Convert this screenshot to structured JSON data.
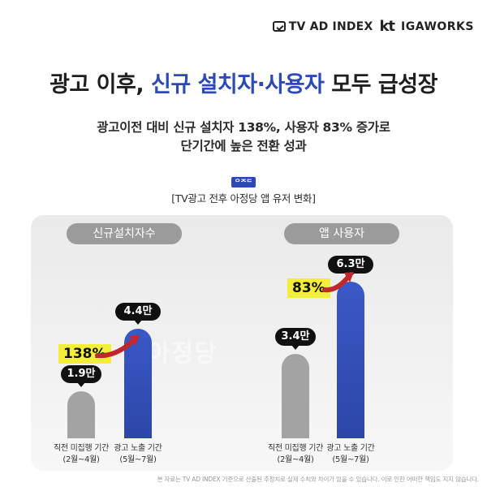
{
  "logos": {
    "tv": "TV AD INDEX",
    "kt": "kt",
    "iga": "IGAWORKS"
  },
  "headline": {
    "part1": "광고 이후, ",
    "highlight": "신규 설치자·사용자",
    "part2": " 모두 급성장"
  },
  "subtitle": {
    "line1": "광고이전 대비 신규 설치자 138%, 사용자 83% 증가로",
    "line2": "단기간에 높은 전환 성과"
  },
  "chart_caption": "[TV광고 전후 아정당 앱 유저 변화]",
  "chart_logo": "ᄋᄌᄃ",
  "background_text": "아정당",
  "footnote": "본 자료는 TV AD INDEX 기준으로 산출된 추정치로 실제 수치와 차이가 있을 수 있습니다. 이로 인한 어떠한 책임도 지지 않습니다.",
  "colors": {
    "accent": "#2c49b5",
    "before_bar": "#a3a3a3",
    "after_bar": "#2f4db5",
    "pct_highlight": "#f2ee3a",
    "arrow": "#c0282d"
  },
  "chart_data": [
    {
      "type": "bar",
      "title": "신규설치자수",
      "categories": [
        "직전 미집행 기간\n(2월~4월)",
        "광고 노출 기간\n(5월~7월)"
      ],
      "category_lines": [
        [
          "직전 미집행 기간",
          "(2월~4월)"
        ],
        [
          "광고 노출 기간",
          "(5월~7월)"
        ]
      ],
      "values": [
        19000,
        44000
      ],
      "value_labels": [
        "1.9만",
        "4.4만"
      ],
      "change_label": "138%",
      "ylim": [
        0,
        70000
      ]
    },
    {
      "type": "bar",
      "title": "앱 사용자",
      "categories": [
        "직전 미집행 기간\n(2월~4월)",
        "광고 노출 기간\n(5월~7월)"
      ],
      "category_lines": [
        [
          "직전 미집행 기간",
          "(2월~4월)"
        ],
        [
          "광고 노출 기간",
          "(5월~7월)"
        ]
      ],
      "values": [
        34000,
        63000
      ],
      "value_labels": [
        "3.4만",
        "6.3만"
      ],
      "change_label": "83%",
      "ylim": [
        0,
        70000
      ]
    }
  ]
}
